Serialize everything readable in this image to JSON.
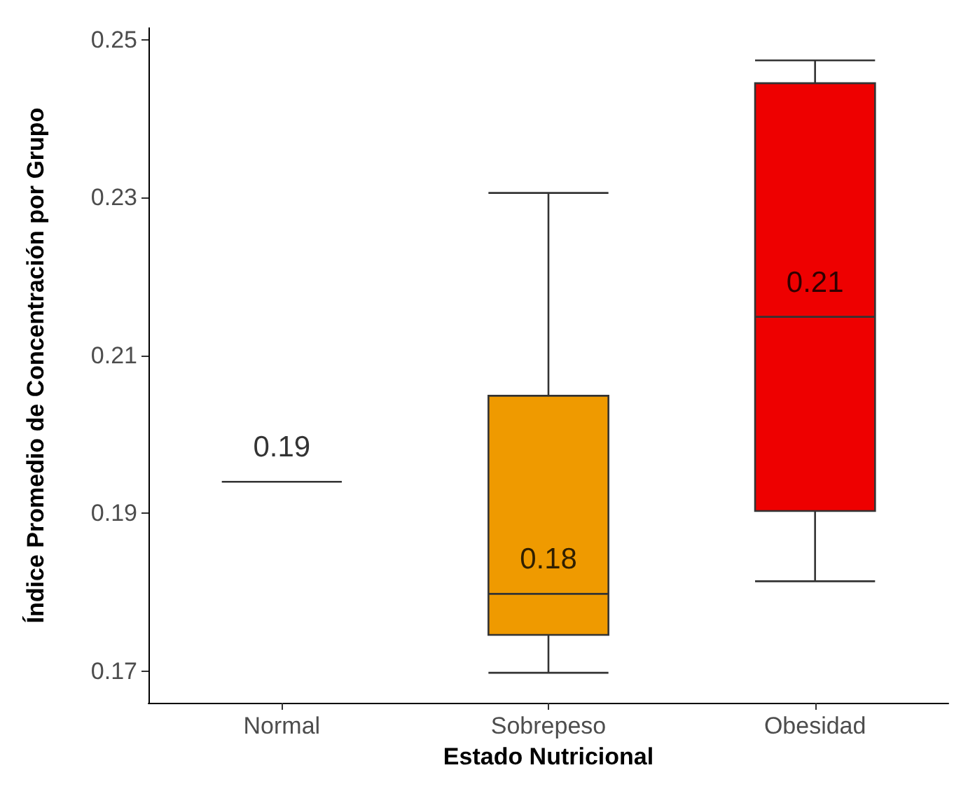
{
  "chart_data": {
    "type": "box",
    "xlabel": "Estado Nutricional",
    "ylabel": "Índice Promedio de Concentración por Grupo",
    "categories": [
      "Normal",
      "Sobrepeso",
      "Obesidad"
    ],
    "colors": [
      null,
      "#ef9a00",
      "#ee0000"
    ],
    "boxes": [
      {
        "low": 0.194,
        "q1": 0.194,
        "median": 0.194,
        "q3": 0.194,
        "high": 0.194
      },
      {
        "low": 0.1698,
        "q1": 0.1746,
        "median": 0.1798,
        "q3": 0.2049,
        "high": 0.2306
      },
      {
        "low": 0.1814,
        "q1": 0.1903,
        "median": 0.2149,
        "q3": 0.2445,
        "high": 0.2474
      }
    ],
    "annotations": [
      {
        "text": "0.19",
        "x": "Normal",
        "y": 0.194
      },
      {
        "text": "0.18",
        "x": "Sobrepeso",
        "y": 0.1798
      },
      {
        "text": "0.21",
        "x": "Obesidad",
        "y": 0.2149
      }
    ],
    "ylim": [
      0.166,
      0.2515
    ],
    "yticks": [
      0.17,
      0.19,
      0.21,
      0.23,
      0.25
    ],
    "grid": false
  }
}
